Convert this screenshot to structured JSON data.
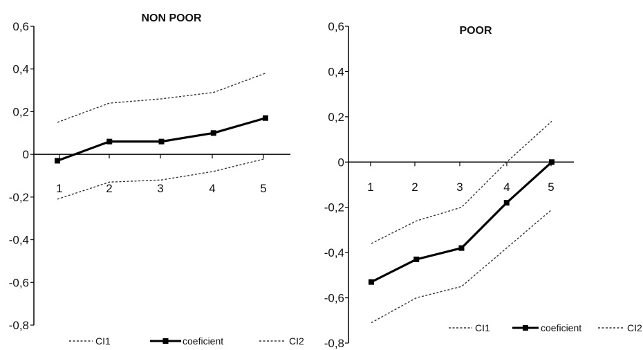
{
  "chart_data": [
    {
      "type": "line",
      "title": "NON POOR",
      "x": [
        1,
        2,
        3,
        4,
        5
      ],
      "x_tick_labels": [
        "1",
        "2",
        "3",
        "4",
        "5"
      ],
      "y_tick_labels": [
        "0,6",
        "0,4",
        "0,2",
        "0",
        "-0,2",
        "-0,4",
        "-0,6",
        "-0,8"
      ],
      "ylim": [
        -0.8,
        0.6
      ],
      "grid": false,
      "legend_position": "bottom",
      "series": [
        {
          "name": "CI1",
          "style": "dotted",
          "color": "#333333",
          "values": [
            0.15,
            0.24,
            0.26,
            0.29,
            0.38
          ]
        },
        {
          "name": "coeficient",
          "style": "solid-marker",
          "color": "#000000",
          "values": [
            -0.03,
            0.06,
            0.06,
            0.1,
            0.17
          ]
        },
        {
          "name": "CI2",
          "style": "dotted",
          "color": "#333333",
          "values": [
            -0.21,
            -0.13,
            -0.12,
            -0.08,
            -0.02
          ]
        }
      ]
    },
    {
      "type": "line",
      "title": "POOR",
      "x": [
        1,
        2,
        3,
        4,
        5
      ],
      "x_tick_labels": [
        "1",
        "2",
        "3",
        "4",
        "5"
      ],
      "y_tick_labels": [
        "0,6",
        "0,4",
        "0,2",
        "0",
        "-0,2",
        "-0,4",
        "-0,6",
        "-0,8"
      ],
      "ylim": [
        -0.8,
        0.6
      ],
      "grid": false,
      "legend_position": "bottom-right",
      "series": [
        {
          "name": "CI1",
          "style": "dotted",
          "color": "#333333",
          "values": [
            -0.36,
            -0.26,
            -0.2,
            0.0,
            0.18
          ]
        },
        {
          "name": "coeficient",
          "style": "solid-marker",
          "color": "#000000",
          "values": [
            -0.53,
            -0.43,
            -0.38,
            -0.18,
            0.0
          ]
        },
        {
          "name": "CI2",
          "style": "dotted",
          "color": "#333333",
          "values": [
            -0.71,
            -0.6,
            -0.55,
            -0.38,
            -0.21
          ]
        }
      ]
    }
  ]
}
